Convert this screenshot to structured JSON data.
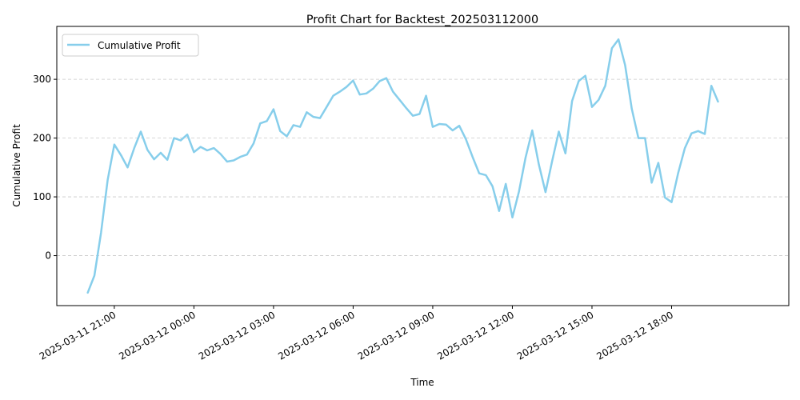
{
  "chart_data": {
    "type": "line",
    "title": "Profit Chart for Backtest_202503112000",
    "xlabel": "Time",
    "ylabel": "Cumulative Profit",
    "x_ticks": [
      "2025-03-11 21:00",
      "2025-03-12 00:00",
      "2025-03-12 03:00",
      "2025-03-12 06:00",
      "2025-03-12 09:00",
      "2025-03-12 12:00",
      "2025-03-12 15:00",
      "2025-03-12 18:00"
    ],
    "x_tick_labels": [
      "2025-03-11 21:00",
      "2025-03-12 00:00",
      "2025-03-12 03:00",
      "2025-03-12 06:00",
      "2025-03-12 09:00",
      "2025-03-12 12:00",
      "2025-03-12 15:00",
      "2025-03-12 18:00"
    ],
    "xlim": [
      "2025-03-11 18:50",
      "2025-03-12 22:25"
    ],
    "y_ticks": [
      0,
      100,
      200,
      300
    ],
    "y_tick_labels": [
      "0",
      "100",
      "200",
      "300"
    ],
    "ylim": [
      -85,
      390
    ],
    "grid": "y-dashed",
    "legend_position": "upper left",
    "series": [
      {
        "name": "Cumulative Profit",
        "color": "#87ceeb",
        "x": [
          "2025-03-11 20:00",
          "2025-03-11 20:15",
          "2025-03-11 20:30",
          "2025-03-11 20:45",
          "2025-03-11 21:00",
          "2025-03-11 21:15",
          "2025-03-11 21:30",
          "2025-03-11 21:45",
          "2025-03-11 22:00",
          "2025-03-11 22:15",
          "2025-03-11 22:30",
          "2025-03-11 22:45",
          "2025-03-11 23:00",
          "2025-03-11 23:15",
          "2025-03-11 23:30",
          "2025-03-11 23:45",
          "2025-03-12 00:00",
          "2025-03-12 00:15",
          "2025-03-12 00:30",
          "2025-03-12 00:45",
          "2025-03-12 01:00",
          "2025-03-12 01:15",
          "2025-03-12 01:30",
          "2025-03-12 01:45",
          "2025-03-12 02:00",
          "2025-03-12 02:15",
          "2025-03-12 02:30",
          "2025-03-12 02:45",
          "2025-03-12 03:00",
          "2025-03-12 03:15",
          "2025-03-12 03:30",
          "2025-03-12 03:45",
          "2025-03-12 04:00",
          "2025-03-12 04:15",
          "2025-03-12 04:30",
          "2025-03-12 04:45",
          "2025-03-12 05:00",
          "2025-03-12 05:15",
          "2025-03-12 05:30",
          "2025-03-12 05:45",
          "2025-03-12 06:00",
          "2025-03-12 06:15",
          "2025-03-12 06:30",
          "2025-03-12 06:45",
          "2025-03-12 07:00",
          "2025-03-12 07:15",
          "2025-03-12 07:30",
          "2025-03-12 07:45",
          "2025-03-12 08:00",
          "2025-03-12 08:15",
          "2025-03-12 08:30",
          "2025-03-12 08:45",
          "2025-03-12 09:00",
          "2025-03-12 09:15",
          "2025-03-12 09:30",
          "2025-03-12 09:45",
          "2025-03-12 10:00",
          "2025-03-12 10:15",
          "2025-03-12 10:30",
          "2025-03-12 10:45",
          "2025-03-12 11:00",
          "2025-03-12 11:15",
          "2025-03-12 11:30",
          "2025-03-12 11:45",
          "2025-03-12 12:00",
          "2025-03-12 12:15",
          "2025-03-12 12:30",
          "2025-03-12 12:45",
          "2025-03-12 13:00",
          "2025-03-12 13:15",
          "2025-03-12 13:30",
          "2025-03-12 13:45",
          "2025-03-12 14:00",
          "2025-03-12 14:15",
          "2025-03-12 14:30",
          "2025-03-12 14:45",
          "2025-03-12 15:00",
          "2025-03-12 15:15",
          "2025-03-12 15:30",
          "2025-03-12 15:45",
          "2025-03-12 16:00",
          "2025-03-12 16:15",
          "2025-03-12 16:30",
          "2025-03-12 16:45",
          "2025-03-12 17:00",
          "2025-03-12 17:15",
          "2025-03-12 17:30",
          "2025-03-12 17:45",
          "2025-03-12 18:00",
          "2025-03-12 18:15",
          "2025-03-12 18:30",
          "2025-03-12 18:45",
          "2025-03-12 19:00",
          "2025-03-12 19:15",
          "2025-03-12 19:30",
          "2025-03-12 19:45"
        ],
        "values": [
          -63,
          -34,
          39,
          129,
          189,
          171,
          150,
          183,
          211,
          180,
          164,
          175,
          163,
          200,
          196,
          206,
          176,
          185,
          179,
          183,
          173,
          160,
          162,
          168,
          172,
          191,
          225,
          229,
          249,
          212,
          203,
          222,
          219,
          244,
          236,
          234,
          253,
          272,
          279,
          287,
          298,
          274,
          276,
          284,
          297,
          302,
          279,
          265,
          251,
          238,
          241,
          272,
          219,
          224,
          223,
          213,
          221,
          198,
          168,
          140,
          137,
          118,
          76,
          122,
          65,
          109,
          167,
          213,
          155,
          108,
          161,
          211,
          174,
          263,
          297,
          306,
          253,
          265,
          289,
          353,
          368,
          324,
          250,
          200,
          200,
          124,
          158,
          99,
          91,
          141,
          183,
          208,
          212,
          207,
          289,
          262
        ]
      }
    ]
  }
}
